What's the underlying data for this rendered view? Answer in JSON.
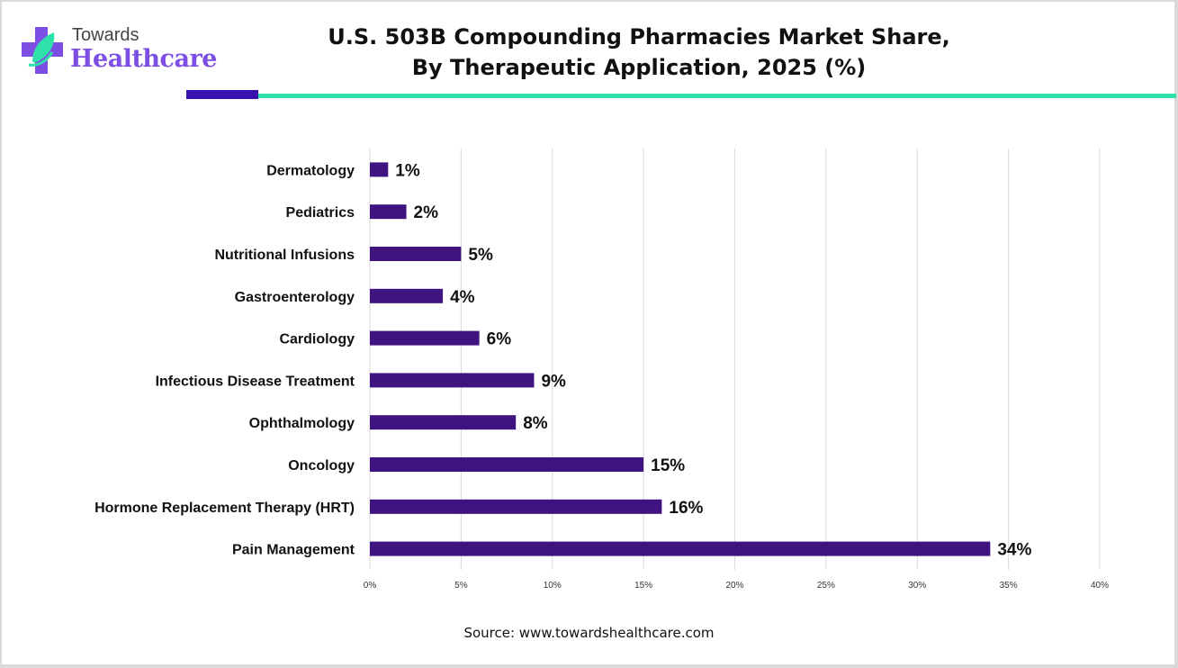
{
  "brand": {
    "line1": "Towards",
    "line2": "Healthcare",
    "colors": {
      "primary": "#7c4ee4",
      "accent": "#2fe0aa",
      "dark": "#3a12b0"
    }
  },
  "header": {
    "title_line1": "U.S. 503B Compounding Pharmacies Market Share,",
    "title_line2": "By Therapeutic Application, 2025 (%)"
  },
  "footer": {
    "source": "Source: www.towardshealthcare.com"
  },
  "chart_data": {
    "type": "bar",
    "orientation": "horizontal",
    "title": "U.S. 503B Compounding Pharmacies Market Share, By Therapeutic Application, 2025 (%)",
    "categories": [
      "Dermatology",
      "Pediatrics",
      "Nutritional Infusions",
      "Gastroenterology",
      "Cardiology",
      "Infectious Disease Treatment",
      "Ophthalmology",
      "Oncology",
      "Hormone Replacement Therapy (HRT)",
      "Pain Management"
    ],
    "values": [
      1,
      2,
      5,
      4,
      6,
      9,
      8,
      15,
      16,
      34
    ],
    "data_labels": [
      "1%",
      "2%",
      "5%",
      "4%",
      "6%",
      "9%",
      "8%",
      "15%",
      "16%",
      "34%"
    ],
    "xlim": [
      0,
      40
    ],
    "xticks": [
      0,
      5,
      10,
      15,
      20,
      25,
      30,
      35,
      40
    ],
    "xtick_labels": [
      "0%",
      "5%",
      "10%",
      "15%",
      "20%",
      "25%",
      "30%",
      "35%",
      "40%"
    ],
    "xlabel": "",
    "ylabel": "",
    "grid": true,
    "bar_color": "#3f1380"
  }
}
